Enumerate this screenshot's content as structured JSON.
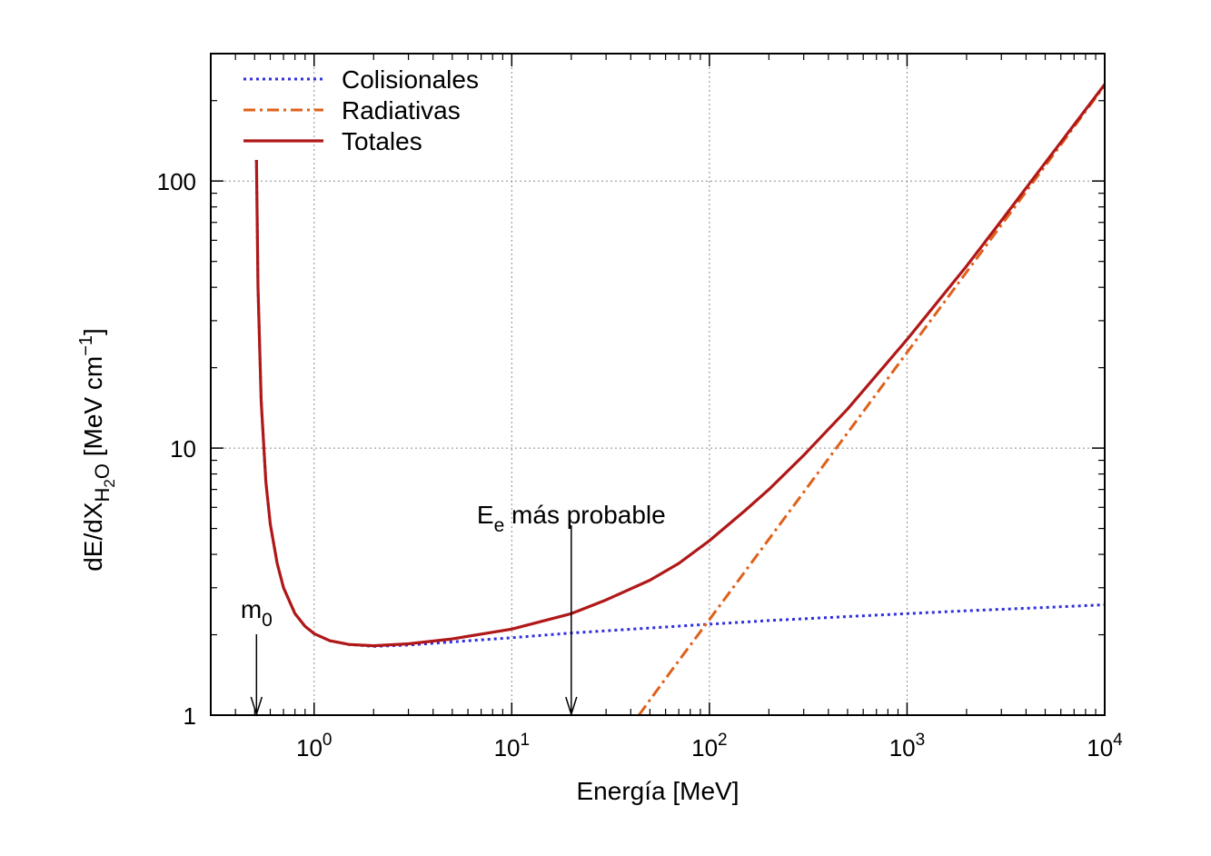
{
  "chart_data": {
    "type": "line",
    "xlabel": "Energía [MeV]",
    "ylabel": {
      "main": "dE/dX",
      "sub_main": "H",
      "sub_sub": "2",
      "sub_tail": "O",
      "units": " [MeV cm",
      "units_sup": "−1",
      "units_close": "]"
    },
    "x_scale": "log",
    "y_scale": "log",
    "xlim": [
      0.3,
      10000
    ],
    "ylim": [
      1,
      300
    ],
    "grid": true,
    "legend_position": "top-left",
    "x_ticks": [
      {
        "value": 1,
        "base": "10",
        "exp": "0"
      },
      {
        "value": 10,
        "base": "10",
        "exp": "1"
      },
      {
        "value": 100,
        "base": "10",
        "exp": "2"
      },
      {
        "value": 1000,
        "base": "10",
        "exp": "3"
      },
      {
        "value": 10000,
        "base": "10",
        "exp": "4"
      }
    ],
    "y_ticks": [
      {
        "value": 1,
        "label": "1"
      },
      {
        "value": 10,
        "label": "10"
      },
      {
        "value": 100,
        "label": "100"
      }
    ],
    "series": [
      {
        "name": "Colisionales",
        "color": "#2f2fdc",
        "style": "dotted",
        "x": [
          0.511,
          0.52,
          0.54,
          0.57,
          0.6,
          0.65,
          0.7,
          0.8,
          0.9,
          1.0,
          1.2,
          1.5,
          2,
          3,
          5,
          10,
          20,
          50,
          100,
          200,
          500,
          1000,
          2000,
          5000,
          10000
        ],
        "y": [
          120,
          40,
          15,
          7.5,
          5.2,
          3.7,
          3.0,
          2.4,
          2.15,
          2.02,
          1.9,
          1.84,
          1.81,
          1.83,
          1.88,
          1.95,
          2.03,
          2.12,
          2.19,
          2.26,
          2.34,
          2.4,
          2.46,
          2.53,
          2.59
        ]
      },
      {
        "name": "Radiativas",
        "color": "#e0601a",
        "style": "dash-dot",
        "x": [
          44,
          50,
          60,
          70,
          100,
          150,
          200,
          300,
          500,
          1000,
          2000,
          3000,
          5000,
          10000
        ],
        "y": [
          1.0,
          1.14,
          1.37,
          1.6,
          2.28,
          3.42,
          4.56,
          6.84,
          11.4,
          22.8,
          45.6,
          68.4,
          114,
          228
        ]
      },
      {
        "name": "Totales",
        "color": "#b01818",
        "style": "solid",
        "x": [
          0.511,
          0.52,
          0.54,
          0.57,
          0.6,
          0.65,
          0.7,
          0.8,
          0.9,
          1.0,
          1.2,
          1.5,
          2,
          3,
          5,
          10,
          20,
          30,
          50,
          70,
          100,
          150,
          200,
          300,
          500,
          1000,
          2000,
          3000,
          5000,
          10000
        ],
        "y": [
          120,
          40,
          15,
          7.5,
          5.2,
          3.7,
          3.0,
          2.4,
          2.15,
          2.02,
          1.9,
          1.84,
          1.82,
          1.85,
          1.93,
          2.1,
          2.4,
          2.7,
          3.2,
          3.7,
          4.5,
          5.8,
          7.0,
          9.4,
          14.0,
          25.5,
          48.0,
          71.0,
          117,
          230
        ]
      }
    ],
    "annotations": [
      {
        "name": "m0",
        "text": "m",
        "sub": "0",
        "x": 0.511
      },
      {
        "name": "e-most-probable",
        "text": "E",
        "sub": "e",
        "tail": " más probable",
        "x": 20
      }
    ]
  }
}
